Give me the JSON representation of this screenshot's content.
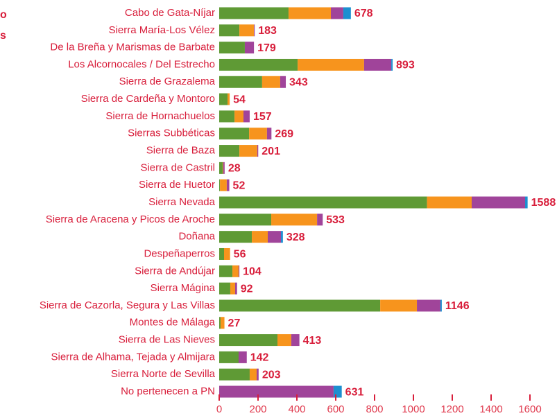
{
  "chart_data": {
    "type": "stacked-barh",
    "annotations": [
      "o",
      "s"
    ],
    "categories": [
      "Cabo de Gata-Níjar",
      "Sierra María-Los Vélez",
      "De la Breña y Marismas de Barbate",
      "Los Alcornocales / Del Estrecho",
      "Sierra de Grazalema",
      "Sierra de Cardeña y Montoro",
      "Sierra de Hornachuelos",
      "Sierras Subbéticas",
      "Sierra de Baza",
      "Sierra de Castril",
      "Sierra de Huetor",
      "Sierra Nevada",
      "Sierra de Aracena y Picos de Aroche",
      "Doñana",
      "Despeñaperros",
      "Sierra de Andújar",
      "Sierra Mágina",
      "Sierra de Cazorla, Segura y Las Villas",
      "Montes de Málaga",
      "Sierra de Las Nieves",
      "Sierra de Alhama, Tejada y Almijara",
      "Sierra Norte de Sevilla",
      "No pertenecen a PN"
    ],
    "series": [
      {
        "color": "#5f9a35",
        "values": [
          357,
          104,
          132,
          404,
          221,
          43,
          79,
          154,
          104,
          18,
          4,
          1070,
          268,
          168,
          25,
          68,
          57,
          829,
          7,
          300,
          100,
          157,
          0
        ]
      },
      {
        "color": "#f7941d",
        "values": [
          218,
          75,
          0,
          342,
          93,
          11,
          46,
          92,
          92,
          3,
          35,
          230,
          236,
          82,
          31,
          32,
          25,
          189,
          20,
          71,
          0,
          36,
          0
        ]
      },
      {
        "color": "#a0449a",
        "values": [
          64,
          4,
          47,
          140,
          29,
          0,
          32,
          23,
          5,
          7,
          13,
          275,
          29,
          68,
          0,
          4,
          10,
          121,
          0,
          42,
          42,
          10,
          589
        ]
      },
      {
        "color": "#1c8fd0",
        "values": [
          39,
          0,
          0,
          7,
          0,
          0,
          0,
          0,
          0,
          0,
          0,
          13,
          0,
          10,
          0,
          0,
          0,
          7,
          0,
          0,
          0,
          0,
          42
        ]
      }
    ],
    "totals": [
      678,
      183,
      179,
      893,
      343,
      54,
      157,
      269,
      201,
      28,
      52,
      1588,
      533,
      328,
      56,
      104,
      92,
      1146,
      27,
      413,
      142,
      203,
      631
    ],
    "xlim": [
      0,
      1600
    ],
    "xticks": [
      0,
      200,
      400,
      600,
      800,
      1000,
      1200,
      1400,
      1600
    ]
  }
}
